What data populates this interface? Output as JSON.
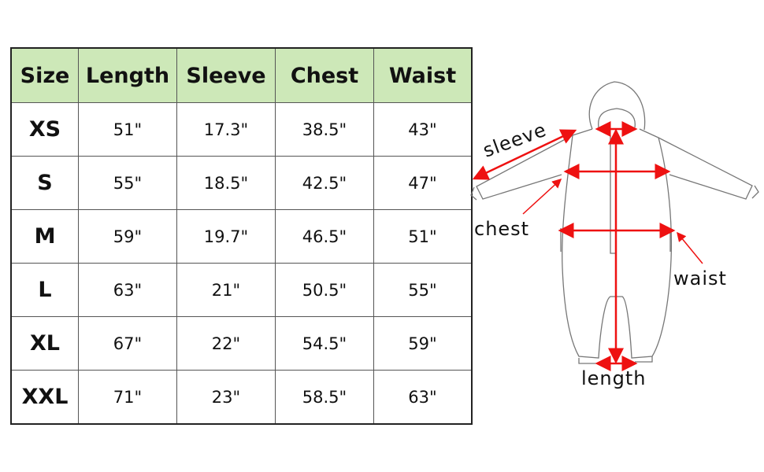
{
  "table": {
    "headers": [
      "Size",
      "Length",
      "Sleeve",
      "Chest",
      "Waist"
    ],
    "rows": [
      [
        "XS",
        "51\"",
        "17.3\"",
        "38.5\"",
        "43\""
      ],
      [
        "S",
        "55\"",
        "18.5\"",
        "42.5\"",
        "47\""
      ],
      [
        "M",
        "59\"",
        "19.7\"",
        "46.5\"",
        "51\""
      ],
      [
        "L",
        "63\"",
        "21\"",
        "50.5\"",
        "55\""
      ],
      [
        "XL",
        "67\"",
        "22\"",
        "54.5\"",
        "59\""
      ],
      [
        "XXL",
        "71\"",
        "23\"",
        "58.5\"",
        "63\""
      ]
    ]
  },
  "diagram": {
    "labels": {
      "sleeve": "sleeve",
      "chest": "chest",
      "waist": "waist",
      "length": "length"
    },
    "colors": {
      "arrow": "#ee1111",
      "outline": "#777777",
      "header_bg": "#cde8b8"
    }
  }
}
